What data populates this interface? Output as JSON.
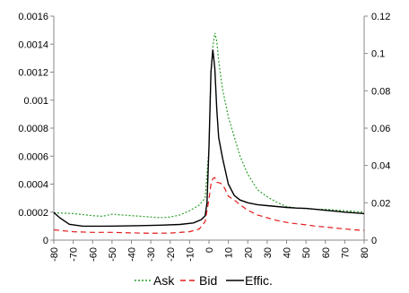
{
  "chart_data": {
    "type": "line",
    "title": "",
    "xlabel": "",
    "ylabel": "",
    "xlim": [
      -80,
      80
    ],
    "ylim_left": [
      0,
      0.0016
    ],
    "ylim_right": [
      0,
      0.12
    ],
    "grid": false,
    "legend_position": "bottom",
    "x_ticks": [
      "-80",
      "-70",
      "-60",
      "-50",
      "-40",
      "-30",
      "-20",
      "-10",
      "0",
      "10",
      "20",
      "30",
      "40",
      "50",
      "60",
      "70",
      "80"
    ],
    "y_left_ticks": [
      "0",
      "0.0002",
      "0.0004",
      "0.0006",
      "0.0008",
      "0.001",
      "0.0012",
      "0.0014",
      "0.0016"
    ],
    "y_right_ticks": [
      "0",
      "0.02",
      "0.04",
      "0.06",
      "0.08",
      "0.1",
      "0.12"
    ],
    "series": [
      {
        "name": "Ask",
        "axis": "left",
        "color": "#2ca02c",
        "style": "dotted",
        "points": [
          [
            -80,
            0.000195
          ],
          [
            -70,
            0.00019
          ],
          [
            -60,
            0.000175
          ],
          [
            -55,
            0.00017
          ],
          [
            -50,
            0.000185
          ],
          [
            -45,
            0.00018
          ],
          [
            -40,
            0.000175
          ],
          [
            -35,
            0.00017
          ],
          [
            -30,
            0.000165
          ],
          [
            -25,
            0.00016
          ],
          [
            -20,
            0.000165
          ],
          [
            -15,
            0.00018
          ],
          [
            -10,
            0.00021
          ],
          [
            -5,
            0.00025
          ],
          [
            -2,
            0.0003
          ],
          [
            0,
            0.00065
          ],
          [
            1,
            0.0012
          ],
          [
            2,
            0.00138
          ],
          [
            3,
            0.00148
          ],
          [
            4,
            0.00142
          ],
          [
            5,
            0.00128
          ],
          [
            7,
            0.00108
          ],
          [
            10,
            0.00088
          ],
          [
            13,
            0.00074
          ],
          [
            16,
            0.0006
          ],
          [
            20,
            0.00047
          ],
          [
            25,
            0.00036
          ],
          [
            30,
            0.00031
          ],
          [
            35,
            0.00027
          ],
          [
            40,
            0.00024
          ],
          [
            45,
            0.00023
          ],
          [
            50,
            0.000225
          ],
          [
            55,
            0.00022
          ],
          [
            60,
            0.00022
          ],
          [
            65,
            0.000215
          ],
          [
            70,
            0.00021
          ],
          [
            75,
            0.000205
          ],
          [
            80,
            0.0002
          ]
        ]
      },
      {
        "name": "Bid",
        "axis": "right",
        "color": "#e41a1c",
        "style": "dashed",
        "points": [
          [
            -80,
            0.0055
          ],
          [
            -70,
            0.0045
          ],
          [
            -60,
            0.0042
          ],
          [
            -50,
            0.0042
          ],
          [
            -40,
            0.0039
          ],
          [
            -30,
            0.0037
          ],
          [
            -20,
            0.0038
          ],
          [
            -10,
            0.0045
          ],
          [
            -5,
            0.006
          ],
          [
            -2,
            0.01
          ],
          [
            0,
            0.022
          ],
          [
            1,
            0.03
          ],
          [
            2,
            0.033
          ],
          [
            3,
            0.0335
          ],
          [
            4,
            0.031
          ],
          [
            6,
            0.0305
          ],
          [
            8,
            0.028
          ],
          [
            10,
            0.0235
          ],
          [
            13,
            0.0215
          ],
          [
            16,
            0.019
          ],
          [
            20,
            0.016
          ],
          [
            25,
            0.0135
          ],
          [
            30,
            0.012
          ],
          [
            35,
            0.0105
          ],
          [
            40,
            0.0095
          ],
          [
            45,
            0.0088
          ],
          [
            50,
            0.0082
          ],
          [
            55,
            0.0075
          ],
          [
            60,
            0.007
          ],
          [
            65,
            0.0065
          ],
          [
            70,
            0.006
          ],
          [
            75,
            0.0055
          ],
          [
            80,
            0.0052
          ]
        ]
      },
      {
        "name": "Effic.",
        "axis": "right",
        "color": "#000000",
        "style": "solid",
        "points": [
          [
            -80,
            0.0148
          ],
          [
            -77,
            0.012
          ],
          [
            -72,
            0.0085
          ],
          [
            -65,
            0.0075
          ],
          [
            -55,
            0.0075
          ],
          [
            -45,
            0.0076
          ],
          [
            -35,
            0.0078
          ],
          [
            -25,
            0.008
          ],
          [
            -15,
            0.0084
          ],
          [
            -8,
            0.0092
          ],
          [
            -4,
            0.011
          ],
          [
            -2,
            0.013
          ],
          [
            -1,
            0.02
          ],
          [
            0,
            0.05
          ],
          [
            1,
            0.09
          ],
          [
            2,
            0.102
          ],
          [
            3,
            0.092
          ],
          [
            4,
            0.07
          ],
          [
            5,
            0.055
          ],
          [
            7,
            0.044
          ],
          [
            10,
            0.03
          ],
          [
            13,
            0.024
          ],
          [
            16,
            0.0215
          ],
          [
            20,
            0.02
          ],
          [
            25,
            0.019
          ],
          [
            30,
            0.0185
          ],
          [
            35,
            0.018
          ],
          [
            40,
            0.0175
          ],
          [
            45,
            0.0172
          ],
          [
            50,
            0.017
          ],
          [
            55,
            0.0165
          ],
          [
            60,
            0.016
          ],
          [
            65,
            0.0155
          ],
          [
            70,
            0.015
          ],
          [
            75,
            0.0146
          ],
          [
            80,
            0.0142
          ]
        ]
      }
    ]
  }
}
